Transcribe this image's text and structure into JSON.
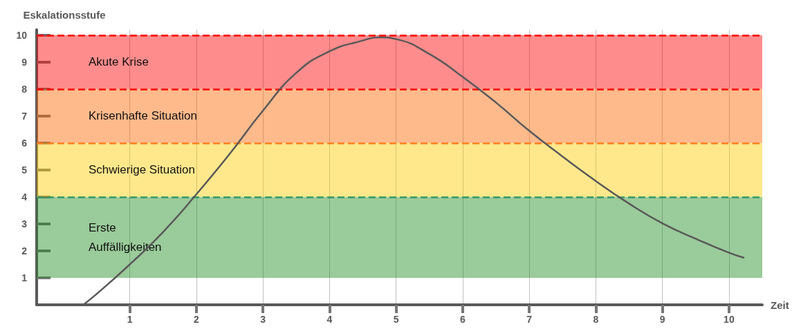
{
  "chart_data": {
    "type": "line",
    "xlabel": "Zeit",
    "ylabel": "Eskalationsstufe",
    "x": [
      0.3,
      0.5,
      1,
      1.5,
      2,
      2.5,
      3,
      3.5,
      4,
      4.5,
      4.74,
      5,
      5.5,
      6,
      6.5,
      7,
      7.5,
      8,
      8.5,
      9,
      9.5,
      10,
      10.22
    ],
    "series": [
      {
        "color": "#595959",
        "values": [
          0,
          0.4,
          1.5,
          2.7,
          4.1,
          5.6,
          7.2,
          8.6,
          9.4,
          9.8,
          9.92,
          9.85,
          9.3,
          8.45,
          7.5,
          6.45,
          5.5,
          4.59,
          3.75,
          3.02,
          2.45,
          1.93,
          1.75
        ]
      }
    ],
    "xlim": [
      -0.4,
      10.5
    ],
    "ylim": [
      0,
      10.2
    ],
    "xticks": [
      1,
      2,
      3,
      4,
      5,
      6,
      7,
      8,
      9,
      10
    ],
    "yticks": [
      1,
      2,
      3,
      4,
      5,
      6,
      7,
      8,
      9,
      10
    ],
    "grid": "x",
    "marker": "none",
    "line_style": "solid",
    "bands": [
      {
        "axis": "y",
        "from": 1,
        "to": 4,
        "label": "Erste Auffälligkeiten",
        "color": "#1e8c1e"
      },
      {
        "axis": "y",
        "from": 4,
        "to": 6,
        "label": "Schwierige Situation",
        "color": "#ffcc00"
      },
      {
        "axis": "y",
        "from": 6,
        "to": 8,
        "label": "Krisenhafte Situation",
        "color": "#ff6600"
      },
      {
        "axis": "y",
        "from": 8,
        "to": 10,
        "label": "Akute Krise",
        "color": "#ff0000"
      }
    ],
    "ref_lines": [
      {
        "axis": "y",
        "value": 10,
        "color": "#ff0000",
        "line_style": "dashed"
      },
      {
        "axis": "y",
        "value": 8,
        "color": "#ff0000",
        "line_style": "dashed"
      },
      {
        "axis": "y",
        "value": 6,
        "color": "#ff7f1f",
        "line_style": "dashed"
      },
      {
        "axis": "y",
        "value": 4,
        "color": "#339966",
        "line_style": "dashed"
      }
    ]
  }
}
